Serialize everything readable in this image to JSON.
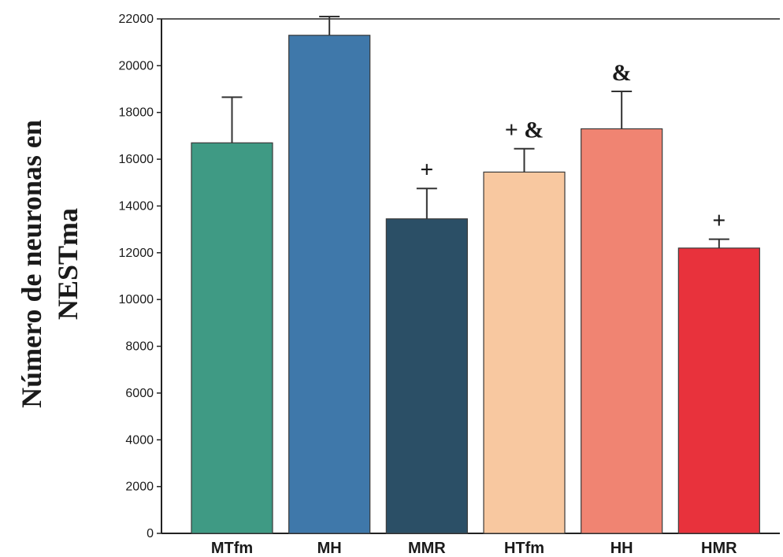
{
  "chart_data": {
    "type": "bar",
    "categories": [
      "MTfm",
      "MH",
      "MMR",
      "HTfm",
      "HH",
      "HMR"
    ],
    "values": [
      16700,
      21300,
      13450,
      15450,
      17300,
      12200
    ],
    "errors": [
      1950,
      800,
      1300,
      1000,
      1600,
      380
    ],
    "annotations": [
      "",
      "",
      "+",
      "+ &",
      "&",
      "+"
    ],
    "colors": [
      "#3f9a84",
      "#3f78aa",
      "#2b4f66",
      "#f8c8a0",
      "#f08472",
      "#e8323c"
    ],
    "ylabel_line1": "Número de neuronas en",
    "ylabel_line2": "NESTma",
    "yticks": [
      0,
      2000,
      4000,
      6000,
      8000,
      10000,
      12000,
      14000,
      16000,
      18000,
      20000,
      22000
    ],
    "ylim": [
      0,
      22000
    ],
    "grid": false
  }
}
